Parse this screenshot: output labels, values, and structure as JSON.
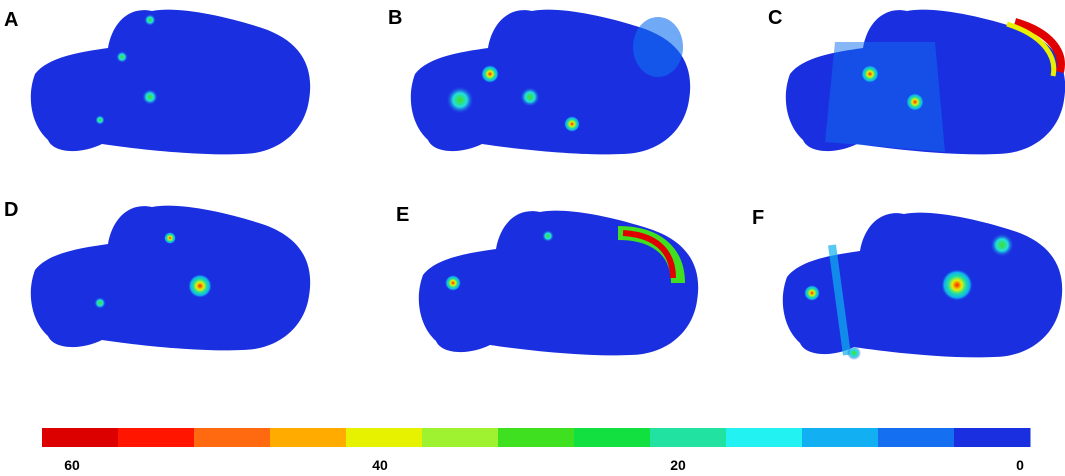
{
  "panels": [
    {
      "label": "A"
    },
    {
      "label": "B"
    },
    {
      "label": "C"
    },
    {
      "label": "D"
    },
    {
      "label": "E"
    },
    {
      "label": "F"
    }
  ],
  "colorbar": {
    "labels": [
      60,
      40,
      20,
      0
    ]
  }
}
